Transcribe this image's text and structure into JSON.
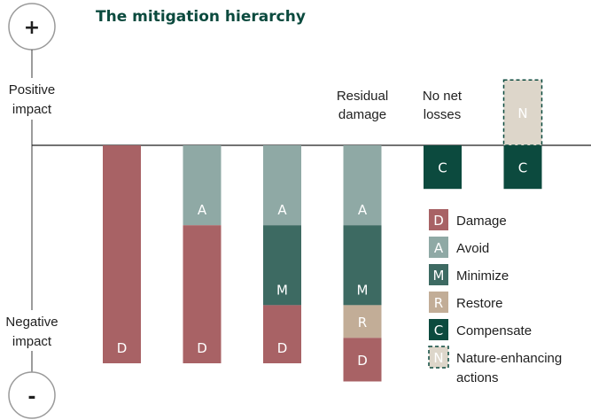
{
  "chart_data": {
    "type": "bar",
    "title": "The mitigation hierarchy",
    "axis": {
      "plus_symbol": "+",
      "minus_symbol": "-",
      "positive_label": [
        "Positive",
        "impact"
      ],
      "negative_label": [
        "Negative",
        "impact"
      ]
    },
    "column_labels": [
      {
        "column": 3,
        "lines": [
          "Residual",
          "damage"
        ]
      },
      {
        "column": 4,
        "lines": [
          "No net",
          "losses"
        ]
      }
    ],
    "columns": [
      {
        "segments": [
          {
            "code": "D",
            "value": -6.0
          }
        ]
      },
      {
        "segments": [
          {
            "code": "A",
            "value": -2.2
          },
          {
            "code": "D",
            "value": -3.8
          }
        ]
      },
      {
        "segments": [
          {
            "code": "A",
            "value": -2.2
          },
          {
            "code": "M",
            "value": -2.2
          },
          {
            "code": "D",
            "value": -1.6
          }
        ]
      },
      {
        "segments": [
          {
            "code": "A",
            "value": -2.2
          },
          {
            "code": "M",
            "value": -2.2
          },
          {
            "code": "R",
            "value": -0.9
          },
          {
            "code": "D",
            "value": -1.2
          }
        ]
      },
      {
        "segments": [
          {
            "code": "C",
            "value": -1.2
          }
        ]
      },
      {
        "segments": [
          {
            "code": "C",
            "value": -1.2
          },
          {
            "code": "N",
            "value": 1.8
          }
        ]
      }
    ],
    "categories": [
      {
        "code": "D",
        "name": "Damage",
        "color": "#a86265"
      },
      {
        "code": "A",
        "name": "Avoid",
        "color": "#8fa9a5"
      },
      {
        "code": "M",
        "name": "Minimize",
        "color": "#3d6a62"
      },
      {
        "code": "R",
        "name": "Restore",
        "color": "#c2ad97"
      },
      {
        "code": "C",
        "name": "Compensate",
        "color": "#0c4a3e"
      },
      {
        "code": "N",
        "name": "Nature-enhancing actions",
        "name_lines": [
          "Nature-enhancing",
          "actions"
        ],
        "color": "#ddd6ca",
        "dashed": true
      }
    ],
    "ylim": [
      -6.0,
      2.0
    ]
  }
}
